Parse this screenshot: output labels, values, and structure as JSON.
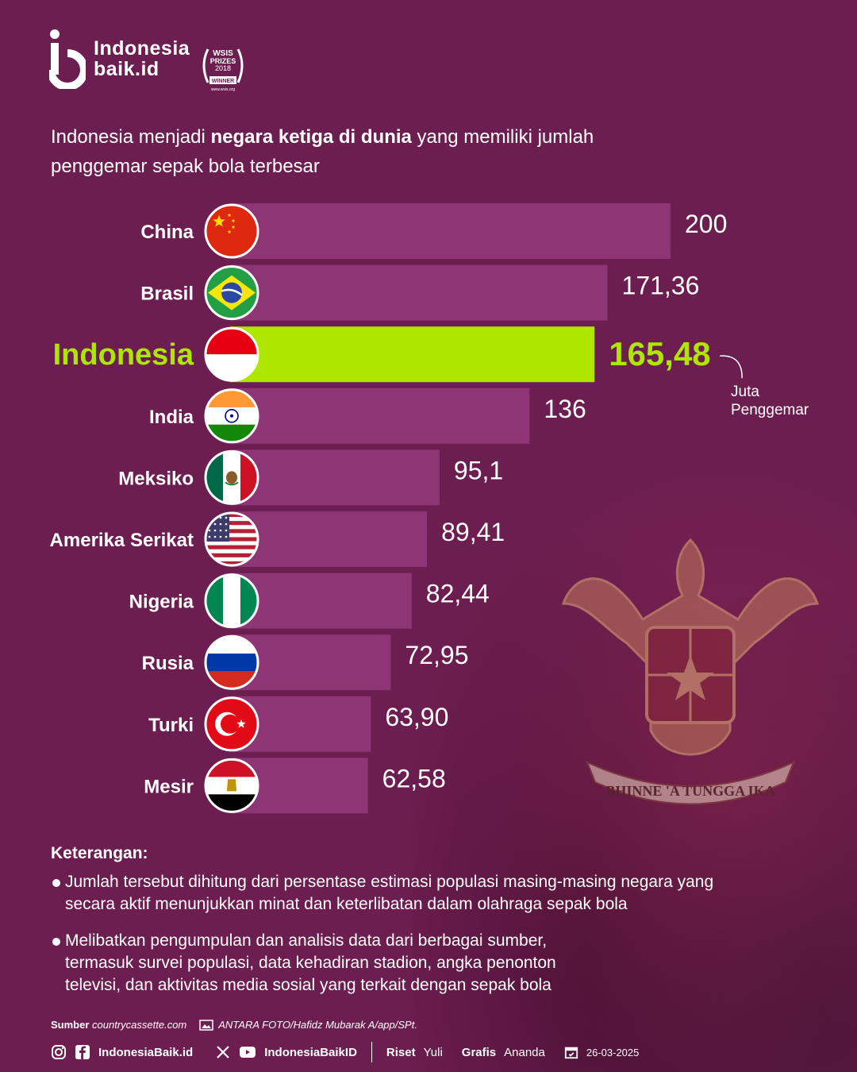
{
  "brand": {
    "line1": "Indonesia",
    "line2": "baik.id"
  },
  "award": {
    "l1": "WSIS",
    "l2": "PRIZES",
    "l3": "2018",
    "l4": "WINNER",
    "l5": "www.wsis.org"
  },
  "headline": {
    "part1": "Indonesia menjadi ",
    "bold": "negara ketiga di dunia",
    "part2": " yang memiliki jumlah penggemar sepak bola terbesar"
  },
  "colors": {
    "background": "#6d1e50",
    "bar": "#8d3575",
    "highlight": "#aee600",
    "text": "#ffffff"
  },
  "chart_data": {
    "type": "bar",
    "orientation": "horizontal",
    "categories": [
      "China",
      "Brasil",
      "Indonesia",
      "India",
      "Meksiko",
      "Amerika Serikat",
      "Nigeria",
      "Rusia",
      "Turki",
      "Mesir"
    ],
    "values": [
      200,
      171.36,
      165.48,
      136,
      95.1,
      89.41,
      82.44,
      72.95,
      63.9,
      62.58
    ],
    "value_labels": [
      "200",
      "171,36",
      "165,48",
      "136",
      "95,1",
      "89,41",
      "82,44",
      "72,95",
      "63,90",
      "62,58"
    ],
    "highlight": "Indonesia",
    "unit_label": "Juta Penggemar",
    "flags": [
      "china-flag-icon",
      "brazil-flag-icon",
      "indonesia-flag-icon",
      "india-flag-icon",
      "mexico-flag-icon",
      "usa-flag-icon",
      "nigeria-flag-icon",
      "russia-flag-icon",
      "turkey-flag-icon",
      "egypt-flag-icon"
    ]
  },
  "notes": {
    "title": "Keterangan:",
    "items": [
      "Jumlah tersebut dihitung dari persentase estimasi populasi masing-masing negara yang secara aktif menunjukkan minat dan keterlibatan dalam olahraga sepak bola",
      "Melibatkan pengumpulan dan analisis data dari berbagai sumber, termasuk survei populasi, data kehadiran stadion, angka penonton televisi, dan aktivitas media sosial yang terkait dengan sepak bola"
    ]
  },
  "source": {
    "label": "Sumber",
    "value": "countrycassette.com",
    "photo": "ANTARA FOTO/Hafidz Mubarak A/app/SPt."
  },
  "footer": {
    "handle1": "IndonesiaBaik.id",
    "handle2": "IndonesiaBaikID",
    "riset_label": "Riset",
    "riset_name": "Yuli",
    "grafis_label": "Grafis",
    "grafis_name": "Ananda",
    "date": "26-03-2025"
  }
}
